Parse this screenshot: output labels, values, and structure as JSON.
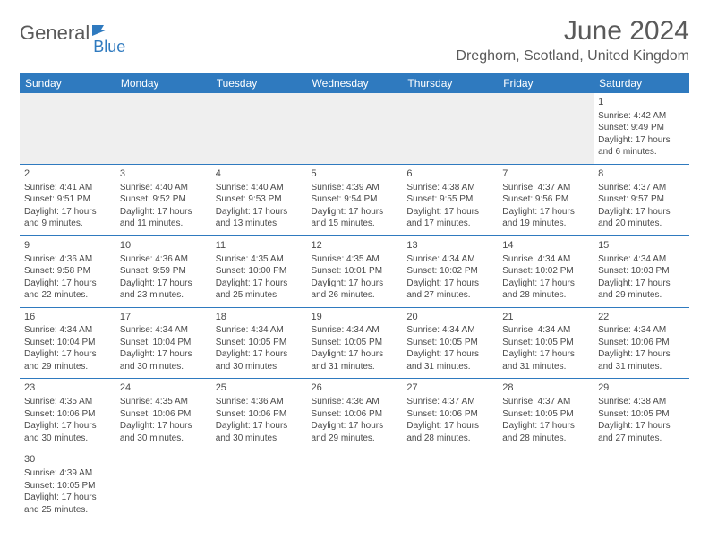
{
  "brand": {
    "part1": "General",
    "part2": "Blue"
  },
  "title": "June 2024",
  "location": "Dreghorn, Scotland, United Kingdom",
  "colors": {
    "header_bg": "#2f7abf",
    "header_text": "#ffffff",
    "cell_border": "#2f7abf",
    "empty_bg": "#efefef",
    "text": "#4a4a4a",
    "title": "#5a5a5a"
  },
  "dayHeaders": [
    "Sunday",
    "Monday",
    "Tuesday",
    "Wednesday",
    "Thursday",
    "Friday",
    "Saturday"
  ],
  "weeks": [
    [
      null,
      null,
      null,
      null,
      null,
      null,
      {
        "n": "1",
        "sr": "Sunrise: 4:42 AM",
        "ss": "Sunset: 9:49 PM",
        "d1": "Daylight: 17 hours",
        "d2": "and 6 minutes."
      }
    ],
    [
      {
        "n": "2",
        "sr": "Sunrise: 4:41 AM",
        "ss": "Sunset: 9:51 PM",
        "d1": "Daylight: 17 hours",
        "d2": "and 9 minutes."
      },
      {
        "n": "3",
        "sr": "Sunrise: 4:40 AM",
        "ss": "Sunset: 9:52 PM",
        "d1": "Daylight: 17 hours",
        "d2": "and 11 minutes."
      },
      {
        "n": "4",
        "sr": "Sunrise: 4:40 AM",
        "ss": "Sunset: 9:53 PM",
        "d1": "Daylight: 17 hours",
        "d2": "and 13 minutes."
      },
      {
        "n": "5",
        "sr": "Sunrise: 4:39 AM",
        "ss": "Sunset: 9:54 PM",
        "d1": "Daylight: 17 hours",
        "d2": "and 15 minutes."
      },
      {
        "n": "6",
        "sr": "Sunrise: 4:38 AM",
        "ss": "Sunset: 9:55 PM",
        "d1": "Daylight: 17 hours",
        "d2": "and 17 minutes."
      },
      {
        "n": "7",
        "sr": "Sunrise: 4:37 AM",
        "ss": "Sunset: 9:56 PM",
        "d1": "Daylight: 17 hours",
        "d2": "and 19 minutes."
      },
      {
        "n": "8",
        "sr": "Sunrise: 4:37 AM",
        "ss": "Sunset: 9:57 PM",
        "d1": "Daylight: 17 hours",
        "d2": "and 20 minutes."
      }
    ],
    [
      {
        "n": "9",
        "sr": "Sunrise: 4:36 AM",
        "ss": "Sunset: 9:58 PM",
        "d1": "Daylight: 17 hours",
        "d2": "and 22 minutes."
      },
      {
        "n": "10",
        "sr": "Sunrise: 4:36 AM",
        "ss": "Sunset: 9:59 PM",
        "d1": "Daylight: 17 hours",
        "d2": "and 23 minutes."
      },
      {
        "n": "11",
        "sr": "Sunrise: 4:35 AM",
        "ss": "Sunset: 10:00 PM",
        "d1": "Daylight: 17 hours",
        "d2": "and 25 minutes."
      },
      {
        "n": "12",
        "sr": "Sunrise: 4:35 AM",
        "ss": "Sunset: 10:01 PM",
        "d1": "Daylight: 17 hours",
        "d2": "and 26 minutes."
      },
      {
        "n": "13",
        "sr": "Sunrise: 4:34 AM",
        "ss": "Sunset: 10:02 PM",
        "d1": "Daylight: 17 hours",
        "d2": "and 27 minutes."
      },
      {
        "n": "14",
        "sr": "Sunrise: 4:34 AM",
        "ss": "Sunset: 10:02 PM",
        "d1": "Daylight: 17 hours",
        "d2": "and 28 minutes."
      },
      {
        "n": "15",
        "sr": "Sunrise: 4:34 AM",
        "ss": "Sunset: 10:03 PM",
        "d1": "Daylight: 17 hours",
        "d2": "and 29 minutes."
      }
    ],
    [
      {
        "n": "16",
        "sr": "Sunrise: 4:34 AM",
        "ss": "Sunset: 10:04 PM",
        "d1": "Daylight: 17 hours",
        "d2": "and 29 minutes."
      },
      {
        "n": "17",
        "sr": "Sunrise: 4:34 AM",
        "ss": "Sunset: 10:04 PM",
        "d1": "Daylight: 17 hours",
        "d2": "and 30 minutes."
      },
      {
        "n": "18",
        "sr": "Sunrise: 4:34 AM",
        "ss": "Sunset: 10:05 PM",
        "d1": "Daylight: 17 hours",
        "d2": "and 30 minutes."
      },
      {
        "n": "19",
        "sr": "Sunrise: 4:34 AM",
        "ss": "Sunset: 10:05 PM",
        "d1": "Daylight: 17 hours",
        "d2": "and 31 minutes."
      },
      {
        "n": "20",
        "sr": "Sunrise: 4:34 AM",
        "ss": "Sunset: 10:05 PM",
        "d1": "Daylight: 17 hours",
        "d2": "and 31 minutes."
      },
      {
        "n": "21",
        "sr": "Sunrise: 4:34 AM",
        "ss": "Sunset: 10:05 PM",
        "d1": "Daylight: 17 hours",
        "d2": "and 31 minutes."
      },
      {
        "n": "22",
        "sr": "Sunrise: 4:34 AM",
        "ss": "Sunset: 10:06 PM",
        "d1": "Daylight: 17 hours",
        "d2": "and 31 minutes."
      }
    ],
    [
      {
        "n": "23",
        "sr": "Sunrise: 4:35 AM",
        "ss": "Sunset: 10:06 PM",
        "d1": "Daylight: 17 hours",
        "d2": "and 30 minutes."
      },
      {
        "n": "24",
        "sr": "Sunrise: 4:35 AM",
        "ss": "Sunset: 10:06 PM",
        "d1": "Daylight: 17 hours",
        "d2": "and 30 minutes."
      },
      {
        "n": "25",
        "sr": "Sunrise: 4:36 AM",
        "ss": "Sunset: 10:06 PM",
        "d1": "Daylight: 17 hours",
        "d2": "and 30 minutes."
      },
      {
        "n": "26",
        "sr": "Sunrise: 4:36 AM",
        "ss": "Sunset: 10:06 PM",
        "d1": "Daylight: 17 hours",
        "d2": "and 29 minutes."
      },
      {
        "n": "27",
        "sr": "Sunrise: 4:37 AM",
        "ss": "Sunset: 10:06 PM",
        "d1": "Daylight: 17 hours",
        "d2": "and 28 minutes."
      },
      {
        "n": "28",
        "sr": "Sunrise: 4:37 AM",
        "ss": "Sunset: 10:05 PM",
        "d1": "Daylight: 17 hours",
        "d2": "and 28 minutes."
      },
      {
        "n": "29",
        "sr": "Sunrise: 4:38 AM",
        "ss": "Sunset: 10:05 PM",
        "d1": "Daylight: 17 hours",
        "d2": "and 27 minutes."
      }
    ],
    [
      {
        "n": "30",
        "sr": "Sunrise: 4:39 AM",
        "ss": "Sunset: 10:05 PM",
        "d1": "Daylight: 17 hours",
        "d2": "and 25 minutes."
      },
      null,
      null,
      null,
      null,
      null,
      null
    ]
  ]
}
